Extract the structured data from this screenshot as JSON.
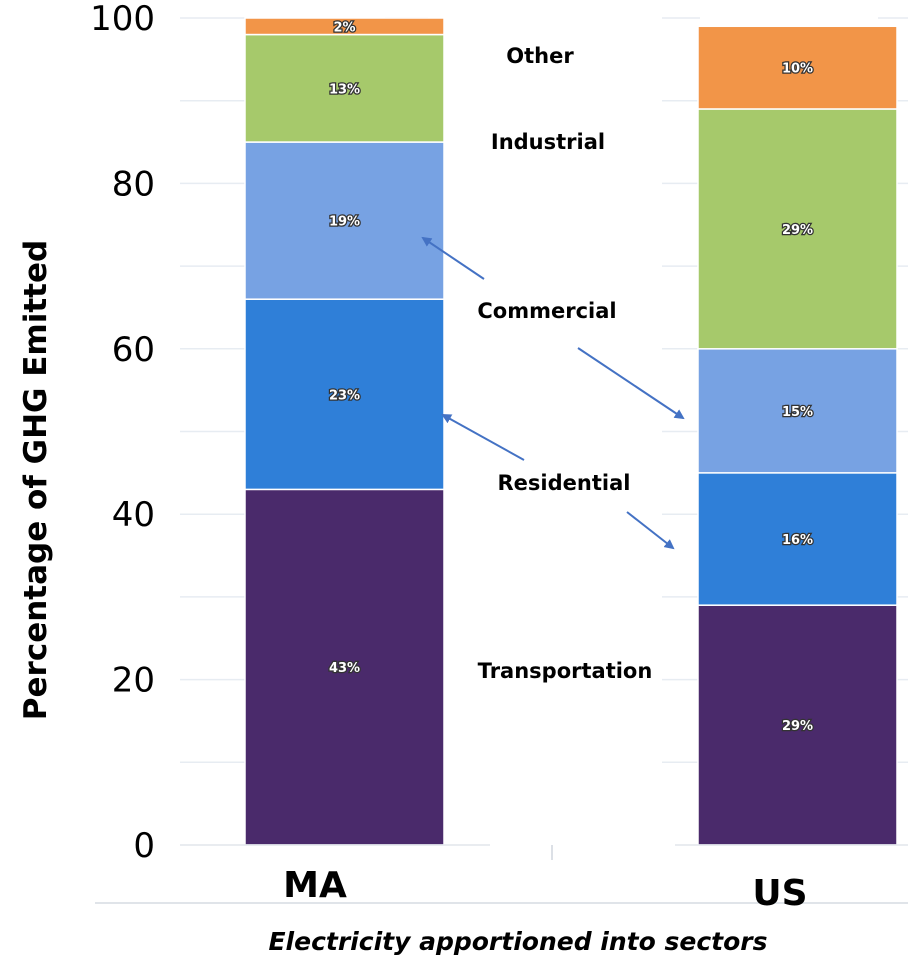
{
  "chart_data": {
    "type": "bar",
    "stacked": true,
    "categories": [
      "MA",
      "US"
    ],
    "series": [
      {
        "name": "Transportation",
        "values": [
          43,
          29
        ],
        "labels": [
          "43%",
          "29%"
        ],
        "color": "#4a2a6b"
      },
      {
        "name": "Residential",
        "values": [
          23,
          16
        ],
        "labels": [
          "23%",
          "16%"
        ],
        "color": "#2f7fd8"
      },
      {
        "name": "Commercial",
        "values": [
          19,
          15
        ],
        "labels": [
          "19%",
          "15%"
        ],
        "color": "#77a2e3"
      },
      {
        "name": "Industrial",
        "values": [
          13,
          29
        ],
        "labels": [
          "13%",
          "29%"
        ],
        "color": "#a6c96b"
      },
      {
        "name": "Other",
        "values": [
          2,
          10
        ],
        "labels": [
          "2%",
          "10%"
        ],
        "color": "#f29548"
      }
    ],
    "yticks": [
      "0",
      "20",
      "40",
      "60",
      "80",
      "100"
    ],
    "ylim": [
      0,
      100
    ],
    "ylabel": "Percentage of GHG Emitted",
    "xlabel": "Electricity apportioned into sectors",
    "grid": true,
    "legend": "annotations between bars"
  }
}
